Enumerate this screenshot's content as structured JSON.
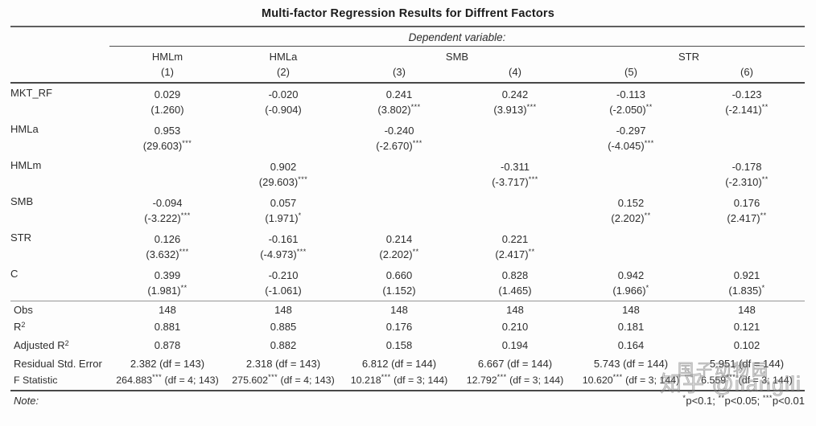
{
  "title": "Multi-factor Regression Results for Diffrent Factors",
  "header": {
    "dependent_variable_label": "Dependent variable:",
    "groups": [
      {
        "label": "HMLm"
      },
      {
        "label": "HMLa"
      },
      {
        "label": "SMB"
      },
      {
        "label": "STR"
      }
    ],
    "column_numbers": [
      "(1)",
      "(2)",
      "(3)",
      "(4)",
      "(5)",
      "(6)"
    ]
  },
  "coefficients": [
    {
      "label": "MKT_RF",
      "cells": [
        {
          "v": "0.029",
          "t": "(1.260)",
          "s": ""
        },
        {
          "v": "-0.020",
          "t": "(-0.904)",
          "s": ""
        },
        {
          "v": "0.241",
          "t": "(3.802)",
          "s": "***"
        },
        {
          "v": "0.242",
          "t": "(3.913)",
          "s": "***"
        },
        {
          "v": "-0.113",
          "t": "(-2.050)",
          "s": "**"
        },
        {
          "v": "-0.123",
          "t": "(-2.141)",
          "s": "**"
        }
      ]
    },
    {
      "label": "HMLa",
      "cells": [
        {
          "v": "0.953",
          "t": "(29.603)",
          "s": "***"
        },
        {
          "v": "",
          "t": "",
          "s": ""
        },
        {
          "v": "-0.240",
          "t": "(-2.670)",
          "s": "***"
        },
        {
          "v": "",
          "t": "",
          "s": ""
        },
        {
          "v": "-0.297",
          "t": "(-4.045)",
          "s": "***"
        },
        {
          "v": "",
          "t": "",
          "s": ""
        }
      ]
    },
    {
      "label": "HMLm",
      "cells": [
        {
          "v": "",
          "t": "",
          "s": ""
        },
        {
          "v": "0.902",
          "t": "(29.603)",
          "s": "***"
        },
        {
          "v": "",
          "t": "",
          "s": ""
        },
        {
          "v": "-0.311",
          "t": "(-3.717)",
          "s": "***"
        },
        {
          "v": "",
          "t": "",
          "s": ""
        },
        {
          "v": "-0.178",
          "t": "(-2.310)",
          "s": "**"
        }
      ]
    },
    {
      "label": "SMB",
      "cells": [
        {
          "v": "-0.094",
          "t": "(-3.222)",
          "s": "***"
        },
        {
          "v": "0.057",
          "t": "(1.971)",
          "s": "*"
        },
        {
          "v": "",
          "t": "",
          "s": ""
        },
        {
          "v": "",
          "t": "",
          "s": ""
        },
        {
          "v": "0.152",
          "t": "(2.202)",
          "s": "**"
        },
        {
          "v": "0.176",
          "t": "(2.417)",
          "s": "**"
        }
      ]
    },
    {
      "label": "STR",
      "cells": [
        {
          "v": "0.126",
          "t": "(3.632)",
          "s": "***"
        },
        {
          "v": "-0.161",
          "t": "(-4.973)",
          "s": "***"
        },
        {
          "v": "0.214",
          "t": "(2.202)",
          "s": "**"
        },
        {
          "v": "0.221",
          "t": "(2.417)",
          "s": "**"
        },
        {
          "v": "",
          "t": "",
          "s": ""
        },
        {
          "v": "",
          "t": "",
          "s": ""
        }
      ]
    },
    {
      "label": "C",
      "cells": [
        {
          "v": "0.399",
          "t": "(1.981)",
          "s": "**"
        },
        {
          "v": "-0.210",
          "t": "(-1.061)",
          "s": ""
        },
        {
          "v": "0.660",
          "t": "(1.152)",
          "s": ""
        },
        {
          "v": "0.828",
          "t": "(1.465)",
          "s": ""
        },
        {
          "v": "0.942",
          "t": "(1.966)",
          "s": "*"
        },
        {
          "v": "0.921",
          "t": "(1.835)",
          "s": "*"
        }
      ]
    }
  ],
  "summary": [
    {
      "label": "Obs",
      "sup": "",
      "small": false,
      "cells": [
        {
          "v": "148",
          "s": "",
          "df": ""
        },
        {
          "v": "148",
          "s": "",
          "df": ""
        },
        {
          "v": "148",
          "s": "",
          "df": ""
        },
        {
          "v": "148",
          "s": "",
          "df": ""
        },
        {
          "v": "148",
          "s": "",
          "df": ""
        },
        {
          "v": "148",
          "s": "",
          "df": ""
        }
      ]
    },
    {
      "label": "R",
      "sup": "2",
      "small": false,
      "cells": [
        {
          "v": "0.881",
          "s": "",
          "df": ""
        },
        {
          "v": "0.885",
          "s": "",
          "df": ""
        },
        {
          "v": "0.176",
          "s": "",
          "df": ""
        },
        {
          "v": "0.210",
          "s": "",
          "df": ""
        },
        {
          "v": "0.181",
          "s": "",
          "df": ""
        },
        {
          "v": "0.121",
          "s": "",
          "df": ""
        }
      ]
    },
    {
      "label": "Adjusted R",
      "sup": "2",
      "small": false,
      "cells": [
        {
          "v": "0.878",
          "s": "",
          "df": ""
        },
        {
          "v": "0.882",
          "s": "",
          "df": ""
        },
        {
          "v": "0.158",
          "s": "",
          "df": ""
        },
        {
          "v": "0.194",
          "s": "",
          "df": ""
        },
        {
          "v": "0.164",
          "s": "",
          "df": ""
        },
        {
          "v": "0.102",
          "s": "",
          "df": ""
        }
      ]
    },
    {
      "label": "Residual Std. Error",
      "sup": "",
      "small": false,
      "cells": [
        {
          "v": "2.382",
          "s": "",
          "df": "(df = 143)"
        },
        {
          "v": "2.318",
          "s": "",
          "df": "(df = 143)"
        },
        {
          "v": "6.812",
          "s": "",
          "df": "(df = 144)"
        },
        {
          "v": "6.667",
          "s": "",
          "df": "(df = 144)"
        },
        {
          "v": "5.743",
          "s": "",
          "df": "(df = 144)"
        },
        {
          "v": "5.951",
          "s": "",
          "df": "(df = 144)"
        }
      ]
    },
    {
      "label": "F Statistic",
      "sup": "",
      "small": true,
      "cells": [
        {
          "v": "264.883",
          "s": "***",
          "df": "(df = 4; 143)"
        },
        {
          "v": "275.602",
          "s": "***",
          "df": "(df = 4; 143)"
        },
        {
          "v": "10.218",
          "s": "***",
          "df": "(df = 3; 144)"
        },
        {
          "v": "12.792",
          "s": "***",
          "df": "(df = 3; 144)"
        },
        {
          "v": "10.620",
          "s": "***",
          "df": "(df = 3; 144)"
        },
        {
          "v": "6.559",
          "s": "***",
          "df": "(df = 3; 144)"
        }
      ]
    }
  ],
  "note": {
    "label": "Note:",
    "legend": [
      {
        "s": "*",
        "t": "p<0.1; "
      },
      {
        "s": "**",
        "t": "p<0.05; "
      },
      {
        "s": "***",
        "t": "p<0.01"
      }
    ]
  },
  "watermark": {
    "line1": "国子动物园",
    "line2": "知乎 @ilangili"
  }
}
